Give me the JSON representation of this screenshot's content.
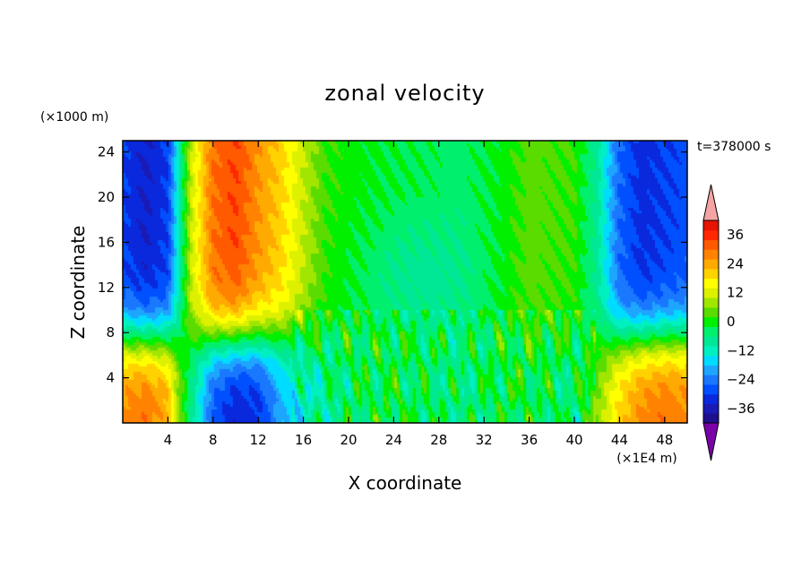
{
  "chart_data": {
    "type": "heatmap",
    "title": "zonal velocity",
    "xlabel": "X coordinate",
    "ylabel": "Z coordinate",
    "x_unit": "(×1E4 m)",
    "y_unit": "(×1000 m)",
    "time_label": "t=378000 s",
    "xlim": [
      0,
      50
    ],
    "ylim": [
      0,
      25
    ],
    "x_ticks": [
      "4",
      "8",
      "12",
      "16",
      "20",
      "24",
      "28",
      "32",
      "36",
      "40",
      "44",
      "48"
    ],
    "y_ticks": [
      "4",
      "8",
      "12",
      "16",
      "20",
      "24"
    ],
    "colorbar": {
      "min": -42,
      "max": 42,
      "step": 4,
      "labels": [
        "36",
        "24",
        "12",
        "0",
        "−12",
        "−24",
        "−36"
      ],
      "label_values": [
        36,
        24,
        12,
        0,
        -12,
        -24,
        -36
      ],
      "colors": [
        "#7a00a8",
        "#1e0f8c",
        "#1a1ab4",
        "#0a28dc",
        "#0050ff",
        "#1a78ff",
        "#1ea6ff",
        "#00dcff",
        "#00f0c0",
        "#00e896",
        "#00f06e",
        "#00f000",
        "#5adc00",
        "#a0e600",
        "#dcf000",
        "#ffff00",
        "#ffd200",
        "#ffaa00",
        "#ff8200",
        "#ff5a00",
        "#ff2800",
        "#e61400",
        "#f5a3a3"
      ]
    },
    "field_description_values": {
      "x_profile_points": [
        0,
        2,
        4,
        5,
        6,
        8,
        10,
        12,
        14,
        16,
        18,
        20,
        24,
        30,
        34,
        36,
        40,
        42,
        44,
        46,
        48,
        50
      ],
      "upper_level_u": [
        -30,
        -34,
        -30,
        -10,
        10,
        30,
        34,
        26,
        20,
        10,
        2,
        0,
        -2,
        -4,
        0,
        4,
        2,
        -8,
        -26,
        -32,
        -30,
        -28
      ],
      "lower_level_u": [
        28,
        30,
        24,
        6,
        -6,
        -28,
        -34,
        -32,
        -20,
        -12,
        -8,
        -4,
        -2,
        -6,
        -2,
        -2,
        -6,
        6,
        20,
        28,
        30,
        28
      ]
    }
  }
}
